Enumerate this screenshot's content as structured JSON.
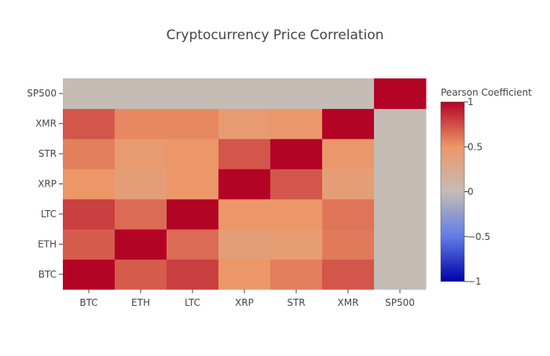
{
  "chart_data": {
    "type": "heatmap",
    "title": "Cryptocurrency Price Correlation",
    "x_categories": [
      "BTC",
      "ETH",
      "LTC",
      "XRP",
      "STR",
      "XMR",
      "SP500"
    ],
    "y_categories": [
      "BTC",
      "ETH",
      "LTC",
      "XRP",
      "STR",
      "XMR",
      "SP500"
    ],
    "z": [
      [
        1.0,
        0.7,
        0.8,
        0.5,
        0.58,
        0.72,
        0.0
      ],
      [
        0.7,
        1.0,
        0.65,
        0.4,
        0.42,
        0.6,
        0.0
      ],
      [
        0.8,
        0.65,
        1.0,
        0.5,
        0.5,
        0.62,
        0.0
      ],
      [
        0.5,
        0.4,
        0.5,
        1.0,
        0.72,
        0.4,
        0.0
      ],
      [
        0.58,
        0.45,
        0.5,
        0.72,
        1.0,
        0.48,
        0.0
      ],
      [
        0.72,
        0.55,
        0.55,
        0.45,
        0.48,
        1.0,
        0.0
      ],
      [
        0.0,
        0.0,
        0.0,
        0.0,
        0.0,
        0.0,
        1.0
      ]
    ],
    "colorbar": {
      "title": "Pearson Coefficient",
      "range": [
        -1,
        1
      ],
      "tick_values": [
        1,
        0.5,
        0,
        -0.5,
        -1
      ],
      "tick_labels": [
        "1",
        "0.5",
        "0",
        "−0.5",
        "−1"
      ]
    },
    "colorscale": [
      "#0000a8",
      "#5f7de6",
      "#c4bcb5",
      "#ec9768",
      "#b40426"
    ]
  }
}
